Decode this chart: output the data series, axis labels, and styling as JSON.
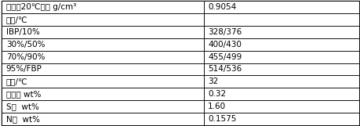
{
  "rows": [
    [
      "密度（20℃）， g/cm³",
      "0.9054"
    ],
    [
      "馏程/℃",
      ""
    ],
    [
      "IBP/10%",
      "328/376"
    ],
    [
      "30%/50%",
      "400/430"
    ],
    [
      "70%/90%",
      "455/499"
    ],
    [
      "95%/FBP",
      "514/536"
    ],
    [
      "凝点/℃",
      "32"
    ],
    [
      "残炭， wt%",
      "0.32"
    ],
    [
      "S，  wt%",
      "1.60"
    ],
    [
      "N，  wt%",
      "0.1575"
    ]
  ],
  "col_split": 0.565,
  "border_color": "#000000",
  "bg_color": "#ffffff",
  "text_color": "#000000",
  "font_size": 7.5,
  "figsize": [
    4.6,
    1.61
  ],
  "dpi": 100
}
